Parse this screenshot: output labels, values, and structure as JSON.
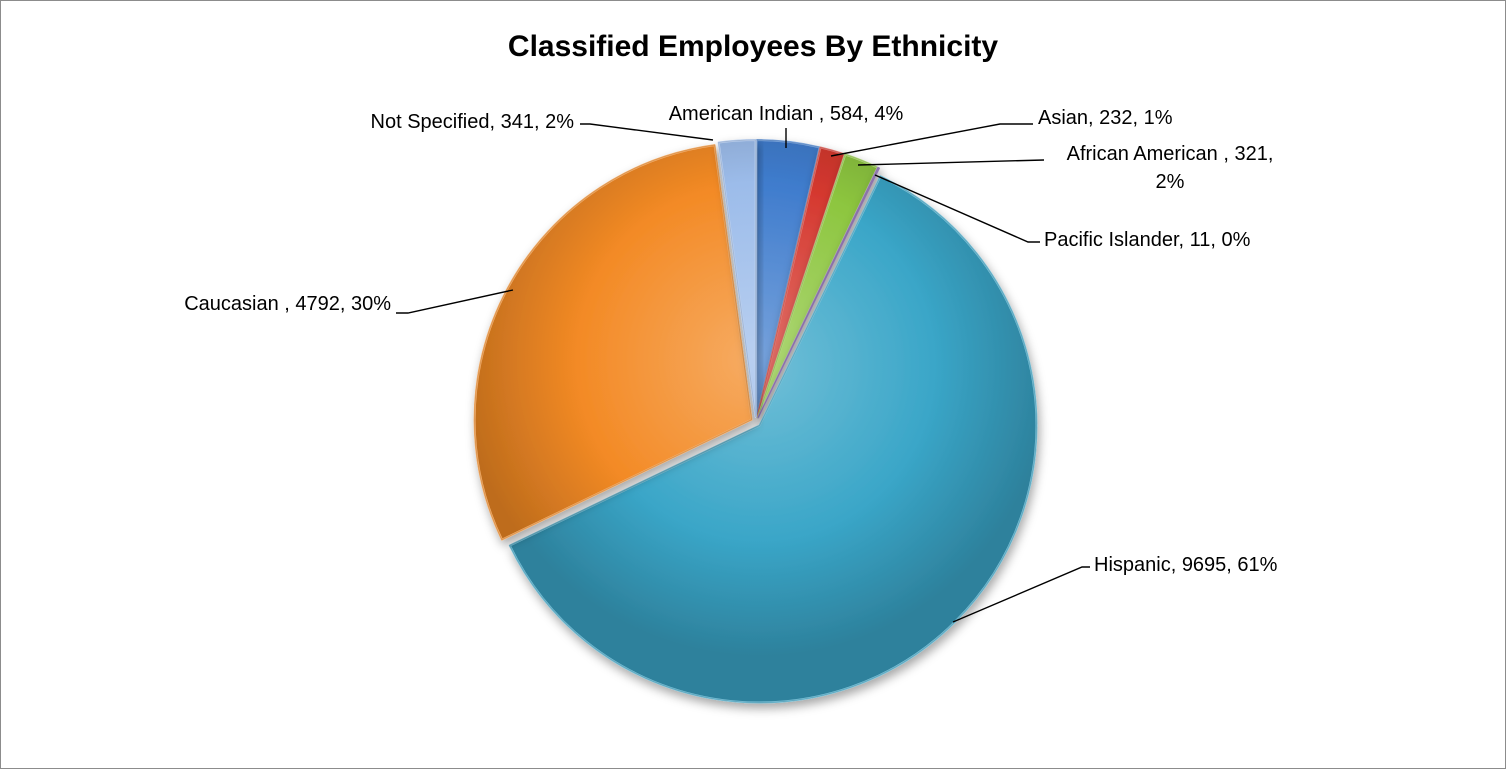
{
  "chart_data": {
    "type": "pie",
    "title": "Classified Employees By Ethnicity",
    "slices": [
      {
        "name": "American Indian",
        "value": 584,
        "percent": "4%",
        "label_lines": [
          "American Indian , 584, 4%"
        ],
        "color": "#3f7ccd"
      },
      {
        "name": "Asian",
        "value": 232,
        "percent": "1%",
        "label_lines": [
          "Asian, 232, 1%"
        ],
        "color": "#d5382f"
      },
      {
        "name": "African American",
        "value": 321,
        "percent": "2%",
        "label_lines": [
          "African American , 321,",
          "2%"
        ],
        "color": "#8dc63f"
      },
      {
        "name": "Pacific Islander",
        "value": 11,
        "percent": "0%",
        "label_lines": [
          "Pacific Islander, 11, 0%"
        ],
        "color": "#7b57a8"
      },
      {
        "name": "Hispanic",
        "value": 9695,
        "percent": "61%",
        "label_lines": [
          "Hispanic, 9695, 61%"
        ],
        "color": "#3aa6c8"
      },
      {
        "name": "Caucasian",
        "value": 4792,
        "percent": "30%",
        "label_lines": [
          "Caucasian , 4792, 30%"
        ],
        "color": "#f38a25"
      },
      {
        "name": "Not Specified",
        "value": 341,
        "percent": "2%",
        "label_lines": [
          "Not Specified, 341, 2%"
        ],
        "color": "#9cbcea"
      }
    ],
    "start_angle_deg": 0,
    "direction": "clockwise",
    "legend": "none"
  }
}
